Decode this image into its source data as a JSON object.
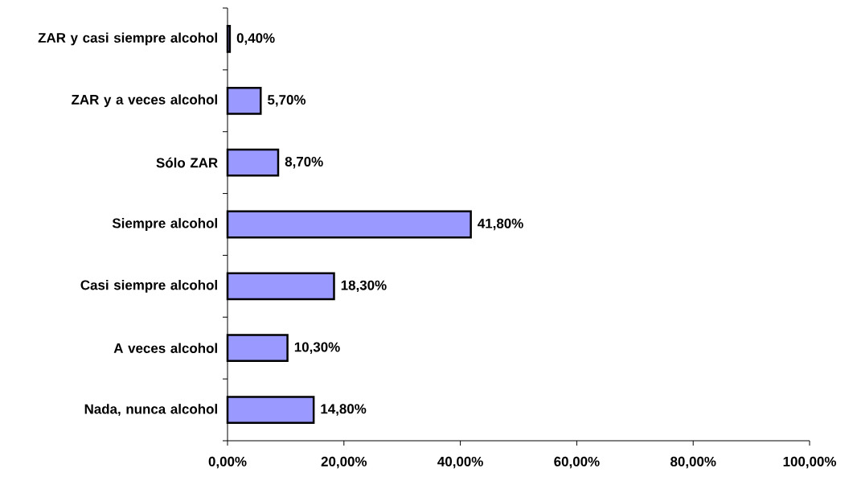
{
  "chart_data": {
    "type": "bar",
    "orientation": "horizontal",
    "categories": [
      "ZAR y casi siempre alcohol",
      "ZAR y a veces alcohol",
      "Sólo ZAR",
      "Siempre alcohol",
      "Casi siempre alcohol",
      "A veces alcohol",
      "Nada, nunca alcohol"
    ],
    "values": [
      0.4,
      5.7,
      8.7,
      41.8,
      18.3,
      10.3,
      14.8
    ],
    "value_labels": [
      "0,40%",
      "5,70%",
      "8,70%",
      "41,80%",
      "18,30%",
      "10,30%",
      "14,80%"
    ],
    "color": "#9999ff",
    "xlim": [
      0,
      100
    ],
    "xticks": [
      {
        "value": 0,
        "label": "0,00%"
      },
      {
        "value": 20,
        "label": "20,00%"
      },
      {
        "value": 40,
        "label": "40,00%"
      },
      {
        "value": 60,
        "label": "60,00%"
      },
      {
        "value": 80,
        "label": "80,00%"
      },
      {
        "value": 100,
        "label": "100,00%"
      }
    ]
  }
}
